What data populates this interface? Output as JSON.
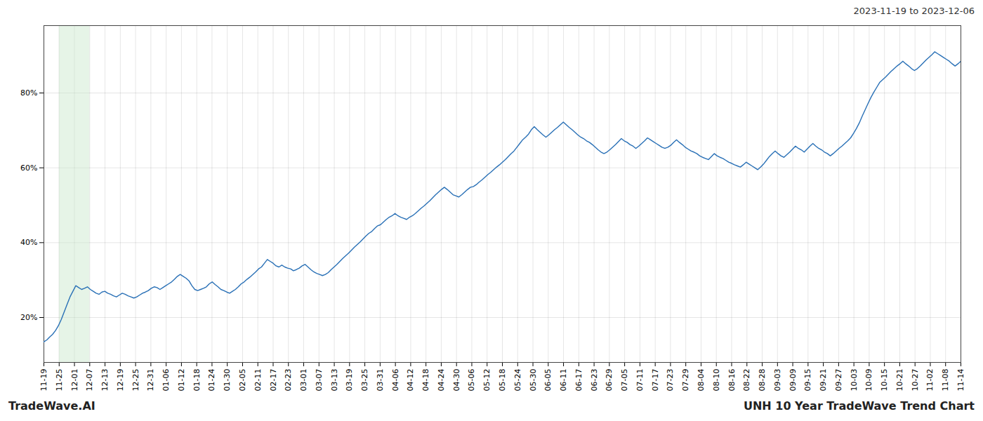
{
  "chart_data": {
    "type": "line",
    "title": "UNH 10 Year TradeWave Trend Chart",
    "subtitle": "2023-11-19 to 2023-12-06",
    "annotations": [
      "TradeWave.AI"
    ],
    "color": "#2970b6",
    "grid": true,
    "highlight": {
      "x": [
        1,
        3
      ],
      "color": "#c8e6c9"
    },
    "xlim": [
      0,
      60
    ],
    "xticks": [
      {
        "value": 0,
        "label": "11-19"
      },
      {
        "value": 1,
        "label": "11-25"
      },
      {
        "value": 2,
        "label": "12-01"
      },
      {
        "value": 3,
        "label": "12-07"
      },
      {
        "value": 4,
        "label": "12-13"
      },
      {
        "value": 5,
        "label": "12-19"
      },
      {
        "value": 6,
        "label": "12-25"
      },
      {
        "value": 7,
        "label": "12-31"
      },
      {
        "value": 8,
        "label": "01-06"
      },
      {
        "value": 9,
        "label": "01-12"
      },
      {
        "value": 10,
        "label": "01-18"
      },
      {
        "value": 11,
        "label": "01-24"
      },
      {
        "value": 12,
        "label": "01-30"
      },
      {
        "value": 13,
        "label": "02-05"
      },
      {
        "value": 14,
        "label": "02-11"
      },
      {
        "value": 15,
        "label": "02-17"
      },
      {
        "value": 16,
        "label": "02-23"
      },
      {
        "value": 17,
        "label": "03-01"
      },
      {
        "value": 18,
        "label": "03-07"
      },
      {
        "value": 19,
        "label": "03-13"
      },
      {
        "value": 20,
        "label": "03-19"
      },
      {
        "value": 21,
        "label": "03-25"
      },
      {
        "value": 22,
        "label": "03-31"
      },
      {
        "value": 23,
        "label": "04-06"
      },
      {
        "value": 24,
        "label": "04-12"
      },
      {
        "value": 25,
        "label": "04-18"
      },
      {
        "value": 26,
        "label": "04-24"
      },
      {
        "value": 27,
        "label": "04-30"
      },
      {
        "value": 28,
        "label": "05-06"
      },
      {
        "value": 29,
        "label": "05-12"
      },
      {
        "value": 30,
        "label": "05-18"
      },
      {
        "value": 31,
        "label": "05-24"
      },
      {
        "value": 32,
        "label": "05-30"
      },
      {
        "value": 33,
        "label": "06-05"
      },
      {
        "value": 34,
        "label": "06-11"
      },
      {
        "value": 35,
        "label": "06-17"
      },
      {
        "value": 36,
        "label": "06-23"
      },
      {
        "value": 37,
        "label": "06-29"
      },
      {
        "value": 38,
        "label": "07-05"
      },
      {
        "value": 39,
        "label": "07-11"
      },
      {
        "value": 40,
        "label": "07-17"
      },
      {
        "value": 41,
        "label": "07-23"
      },
      {
        "value": 42,
        "label": "07-29"
      },
      {
        "value": 43,
        "label": "08-04"
      },
      {
        "value": 44,
        "label": "08-10"
      },
      {
        "value": 45,
        "label": "08-16"
      },
      {
        "value": 46,
        "label": "08-22"
      },
      {
        "value": 47,
        "label": "08-28"
      },
      {
        "value": 48,
        "label": "09-03"
      },
      {
        "value": 49,
        "label": "09-09"
      },
      {
        "value": 50,
        "label": "09-15"
      },
      {
        "value": 51,
        "label": "09-21"
      },
      {
        "value": 52,
        "label": "09-27"
      },
      {
        "value": 53,
        "label": "10-03"
      },
      {
        "value": 54,
        "label": "10-09"
      },
      {
        "value": 55,
        "label": "10-15"
      },
      {
        "value": 56,
        "label": "10-21"
      },
      {
        "value": 57,
        "label": "10-27"
      },
      {
        "value": 58,
        "label": "11-02"
      },
      {
        "value": 59,
        "label": "11-08"
      },
      {
        "value": 60,
        "label": "11-14"
      }
    ],
    "ylim": [
      8,
      98
    ],
    "yticks": [
      {
        "value": 20,
        "label": "20%"
      },
      {
        "value": 40,
        "label": "40%"
      },
      {
        "value": 60,
        "label": "60%"
      },
      {
        "value": 80,
        "label": "80%"
      }
    ],
    "values": [
      13.5,
      14.0,
      14.8,
      15.5,
      16.5,
      17.8,
      19.5,
      21.5,
      23.5,
      25.5,
      27.0,
      28.5,
      28.0,
      27.5,
      27.8,
      28.2,
      27.5,
      27.0,
      26.5,
      26.2,
      26.8,
      27.0,
      26.5,
      26.2,
      25.8,
      25.5,
      26.0,
      26.5,
      26.2,
      25.8,
      25.5,
      25.2,
      25.5,
      26.0,
      26.5,
      26.8,
      27.2,
      27.8,
      28.2,
      28.0,
      27.5,
      28.0,
      28.5,
      29.0,
      29.5,
      30.2,
      31.0,
      31.5,
      31.0,
      30.5,
      29.8,
      28.5,
      27.5,
      27.2,
      27.5,
      27.8,
      28.2,
      29.0,
      29.5,
      28.8,
      28.2,
      27.5,
      27.2,
      26.8,
      26.5,
      27.0,
      27.5,
      28.2,
      29.0,
      29.5,
      30.2,
      30.8,
      31.5,
      32.2,
      33.0,
      33.5,
      34.5,
      35.5,
      35.0,
      34.5,
      33.8,
      33.5,
      34.0,
      33.5,
      33.2,
      33.0,
      32.5,
      32.8,
      33.2,
      33.8,
      34.2,
      33.5,
      32.8,
      32.2,
      31.8,
      31.5,
      31.2,
      31.5,
      32.0,
      32.8,
      33.5,
      34.2,
      35.0,
      35.8,
      36.5,
      37.2,
      38.0,
      38.8,
      39.5,
      40.2,
      41.0,
      41.8,
      42.5,
      43.0,
      43.8,
      44.5,
      44.8,
      45.5,
      46.2,
      46.8,
      47.2,
      47.8,
      47.2,
      46.8,
      46.5,
      46.2,
      46.8,
      47.2,
      47.8,
      48.5,
      49.2,
      49.8,
      50.5,
      51.2,
      52.0,
      52.8,
      53.5,
      54.2,
      54.8,
      54.2,
      53.5,
      52.8,
      52.5,
      52.2,
      52.8,
      53.5,
      54.2,
      54.8,
      55.0,
      55.5,
      56.2,
      56.8,
      57.5,
      58.2,
      58.8,
      59.5,
      60.2,
      60.8,
      61.5,
      62.2,
      63.0,
      63.8,
      64.5,
      65.5,
      66.5,
      67.5,
      68.2,
      69.0,
      70.2,
      71.0,
      70.2,
      69.5,
      68.8,
      68.2,
      68.8,
      69.5,
      70.2,
      70.8,
      71.5,
      72.2,
      71.5,
      70.8,
      70.2,
      69.5,
      68.8,
      68.2,
      67.8,
      67.2,
      66.8,
      66.2,
      65.5,
      64.8,
      64.2,
      63.8,
      64.2,
      64.8,
      65.5,
      66.2,
      67.0,
      67.8,
      67.2,
      66.8,
      66.2,
      65.8,
      65.2,
      65.8,
      66.5,
      67.2,
      68.0,
      67.5,
      67.0,
      66.5,
      66.0,
      65.5,
      65.2,
      65.5,
      66.0,
      66.8,
      67.5,
      66.8,
      66.2,
      65.5,
      65.0,
      64.5,
      64.2,
      63.8,
      63.2,
      62.8,
      62.5,
      62.2,
      63.0,
      63.8,
      63.2,
      62.8,
      62.5,
      62.0,
      61.5,
      61.2,
      60.8,
      60.5,
      60.2,
      60.8,
      61.5,
      61.0,
      60.5,
      60.0,
      59.5,
      60.2,
      61.0,
      62.0,
      63.0,
      63.8,
      64.5,
      63.8,
      63.2,
      62.8,
      63.5,
      64.2,
      65.0,
      65.8,
      65.2,
      64.8,
      64.2,
      65.0,
      65.8,
      66.5,
      65.8,
      65.2,
      64.8,
      64.2,
      63.8,
      63.2,
      63.8,
      64.5,
      65.2,
      65.8,
      66.5,
      67.2,
      68.0,
      69.2,
      70.5,
      72.0,
      73.8,
      75.5,
      77.2,
      78.8,
      80.2,
      81.5,
      82.8,
      83.5,
      84.2,
      85.0,
      85.8,
      86.5,
      87.2,
      87.8,
      88.5,
      87.8,
      87.2,
      86.5,
      86.0,
      86.5,
      87.2,
      88.0,
      88.8,
      89.5,
      90.2,
      91.0,
      90.5,
      90.0,
      89.5,
      89.0,
      88.5,
      87.8,
      87.2,
      87.8,
      88.5
    ]
  }
}
